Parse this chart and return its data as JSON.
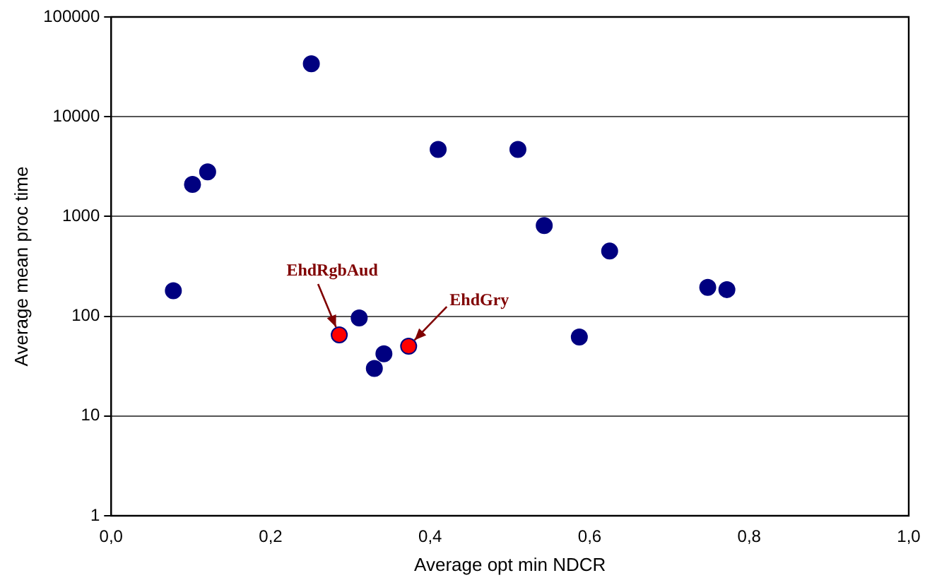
{
  "chart_data": {
    "type": "scatter",
    "xlabel": "Average opt min NDCR",
    "ylabel": "Average mean proc time",
    "x": [
      0.078,
      0.102,
      0.121,
      0.251,
      0.286,
      0.311,
      0.33,
      0.342,
      0.373,
      0.41,
      0.51,
      0.543,
      0.587,
      0.625,
      0.748,
      0.772
    ],
    "values": [
      180,
      2100,
      2800,
      34000,
      65,
      96,
      30,
      42,
      50,
      4700,
      4700,
      810,
      62,
      450,
      195,
      185
    ],
    "colors": [
      "#000080",
      "#000080",
      "#000080",
      "#000080",
      "#ff0000",
      "#000080",
      "#000080",
      "#000080",
      "#ff0000",
      "#000080",
      "#000080",
      "#000080",
      "#000080",
      "#000080",
      "#000080",
      "#000080"
    ],
    "xlim": [
      0,
      1
    ],
    "xticks": [
      {
        "value": 0,
        "label": "0,0"
      },
      {
        "value": 0.2,
        "label": "0,2"
      },
      {
        "value": 0.4,
        "label": "0,4"
      },
      {
        "value": 0.6,
        "label": "0,6"
      },
      {
        "value": 0.8,
        "label": "0,8"
      },
      {
        "value": 1,
        "label": "1,0"
      }
    ],
    "ylim": [
      1,
      100000
    ],
    "yticks": [
      1,
      10,
      100,
      1000,
      10000,
      100000
    ],
    "log": "y",
    "grid": "y",
    "legend": false,
    "marker": "circle",
    "annotations": [
      {
        "text": "EhdRgbAud",
        "x": 0.286,
        "y": 65
      },
      {
        "text": "EhdGry",
        "x": 0.373,
        "y": 50
      }
    ]
  }
}
